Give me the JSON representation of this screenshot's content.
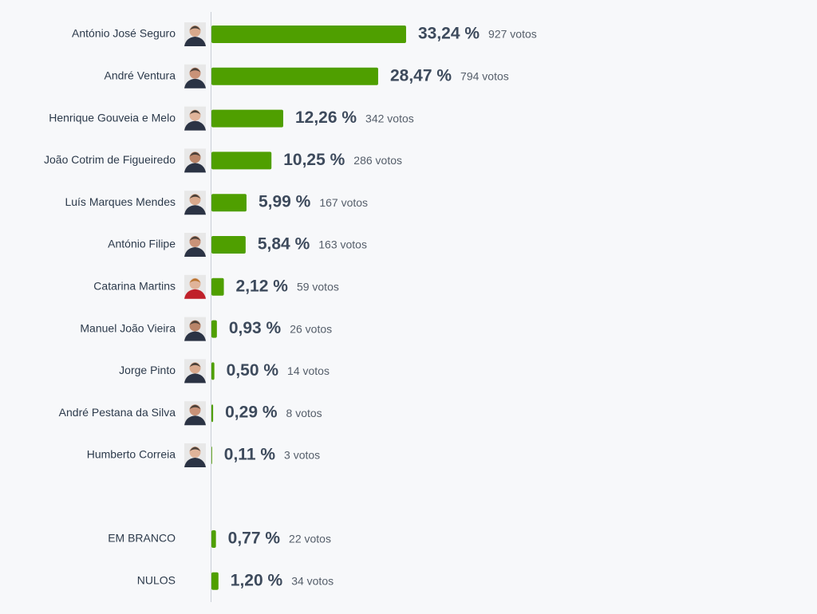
{
  "chart_data": [
    {
      "type": "bar",
      "orientation": "horizontal",
      "color": "#4f9f00",
      "categories": [
        "António José Seguro",
        "André Ventura",
        "Henrique Gouveia e Melo",
        "João Cotrim de Figueiredo",
        "Luís Marques Mendes",
        "António Filipe",
        "Catarina Martins",
        "Manuel João Vieira",
        "Jorge Pinto",
        "André Pestana da Silva",
        "Humberto Correia"
      ],
      "values": [
        33.24,
        28.47,
        12.26,
        10.25,
        5.99,
        5.84,
        2.12,
        0.93,
        0.5,
        0.29,
        0.11
      ],
      "value_labels": [
        "33,24 %",
        "28,47 %",
        "12,26 %",
        "10,25 %",
        "5,99 %",
        "5,84 %",
        "2,12 %",
        "0,93 %",
        "0,50 %",
        "0,29 %",
        "0,11 %"
      ],
      "vote_labels": [
        "927 votos",
        "794 votos",
        "342 votos",
        "286 votos",
        "167 votos",
        "163 votos",
        "59 votos",
        "26 votos",
        "14 votos",
        "8 votos",
        "3 votos"
      ]
    },
    {
      "type": "bar",
      "orientation": "horizontal",
      "color": "#4f9f00",
      "categories": [
        "EM BRANCO",
        "NULOS"
      ],
      "values": [
        0.77,
        1.2
      ],
      "value_labels": [
        "0,77 %",
        "1,20 %"
      ],
      "vote_labels": [
        "22 votos",
        "34 votos"
      ]
    }
  ]
}
